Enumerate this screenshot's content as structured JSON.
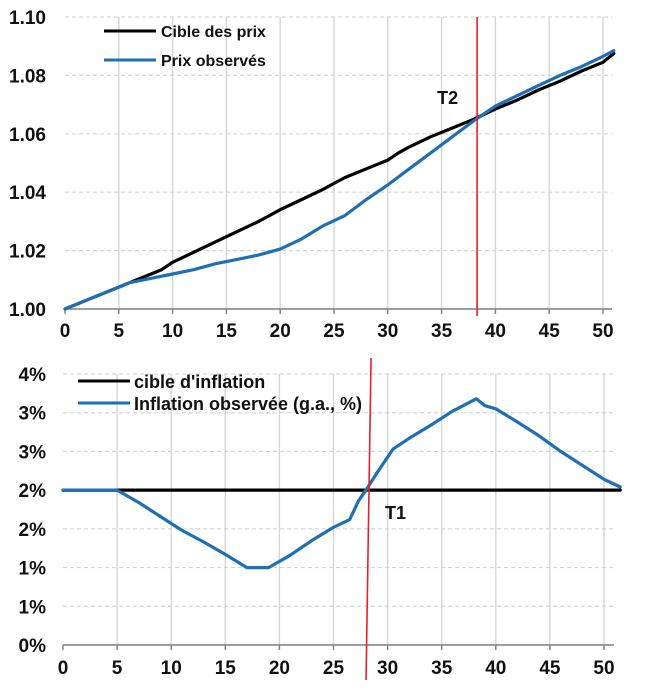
{
  "colors": {
    "target": "#000000",
    "observed": "#1f6fb5",
    "marker": "#e8202a",
    "grid": "#d6d6d6",
    "axis": "#7f7f7f"
  },
  "chart_data": [
    {
      "type": "line",
      "title": "",
      "xlabel": "",
      "ylabel": "",
      "xlim": [
        0,
        52
      ],
      "ylim": [
        1.0,
        1.1
      ],
      "xticks": [
        "0",
        "5",
        "10",
        "15",
        "20",
        "25",
        "30",
        "35",
        "40",
        "45",
        "50"
      ],
      "yticks": [
        "1.00",
        "1.02",
        "1.04",
        "1.06",
        "1.08",
        "1.10"
      ],
      "ytick_values": [
        1.0,
        1.02,
        1.04,
        1.06,
        1.08,
        1.1
      ],
      "grid": true,
      "legend": "top-left",
      "series": [
        {
          "name": "Cible des prix",
          "x": [
            0,
            2,
            4,
            5,
            6,
            7,
            8,
            9,
            10,
            12,
            14,
            16,
            18,
            19,
            20,
            22,
            24,
            25,
            26,
            28,
            30,
            31,
            32,
            34,
            36,
            38,
            40,
            42,
            44,
            46,
            48,
            50,
            51
          ],
          "y": [
            1.0,
            1.003,
            1.006,
            1.0075,
            1.009,
            1.0105,
            1.012,
            1.0135,
            1.016,
            1.0195,
            1.023,
            1.0265,
            1.03,
            1.032,
            1.034,
            1.0375,
            1.041,
            1.043,
            1.045,
            1.048,
            1.051,
            1.0535,
            1.0555,
            1.059,
            1.062,
            1.065,
            1.0685,
            1.0715,
            1.075,
            1.078,
            1.0815,
            1.0845,
            1.0875
          ]
        },
        {
          "name": "Prix observés",
          "x": [
            0,
            2,
            4,
            5,
            6,
            8,
            10,
            12,
            14,
            16,
            18,
            19,
            20,
            22,
            24,
            26,
            28,
            30,
            32,
            34,
            36,
            38,
            40,
            42,
            44,
            46,
            48,
            50,
            51
          ],
          "y": [
            1.0,
            1.003,
            1.006,
            1.0075,
            1.009,
            1.0105,
            1.012,
            1.0135,
            1.0155,
            1.017,
            1.0185,
            1.0195,
            1.0205,
            1.024,
            1.0285,
            1.032,
            1.0375,
            1.0425,
            1.048,
            1.0535,
            1.059,
            1.0645,
            1.0695,
            1.073,
            1.0765,
            1.08,
            1.083,
            1.0865,
            1.0885
          ]
        }
      ],
      "vline": {
        "x": 38.3,
        "label": "T2"
      }
    },
    {
      "type": "line",
      "title": "",
      "xlabel": "",
      "ylabel": "",
      "xlim": [
        0,
        52
      ],
      "ylim": [
        0,
        3.5
      ],
      "xticks": [
        "0",
        "5",
        "10",
        "15",
        "20",
        "25",
        "30",
        "35",
        "40",
        "45",
        "50"
      ],
      "yticks": [
        "0%",
        "1%",
        "1%",
        "2%",
        "2%",
        "3%",
        "3%",
        "4%"
      ],
      "ytick_values": [
        0,
        0.5,
        1.0,
        1.5,
        2.0,
        2.5,
        3.0,
        3.5
      ],
      "grid": true,
      "legend": "top-left",
      "series": [
        {
          "name": "cible d'inflation",
          "x": [
            0,
            51.5
          ],
          "y": [
            2.0,
            2.0
          ]
        },
        {
          "name": "Inflation observée (g.a., %)",
          "x": [
            0,
            5,
            7,
            9,
            11,
            13,
            15,
            17,
            19,
            21,
            23,
            25,
            26.5,
            27.3,
            28,
            29,
            30.5,
            32,
            34,
            36,
            38.2,
            39,
            40,
            42,
            44,
            46,
            48,
            50,
            51.5
          ],
          "y": [
            2.0,
            2.0,
            1.84,
            1.66,
            1.48,
            1.33,
            1.17,
            1.0,
            1.0,
            1.16,
            1.35,
            1.52,
            1.62,
            1.86,
            2.0,
            2.22,
            2.53,
            2.67,
            2.84,
            3.02,
            3.18,
            3.09,
            3.05,
            2.88,
            2.7,
            2.5,
            2.32,
            2.14,
            2.04
          ]
        }
      ],
      "vline": {
        "x": 28.1,
        "label": "T1"
      }
    }
  ]
}
